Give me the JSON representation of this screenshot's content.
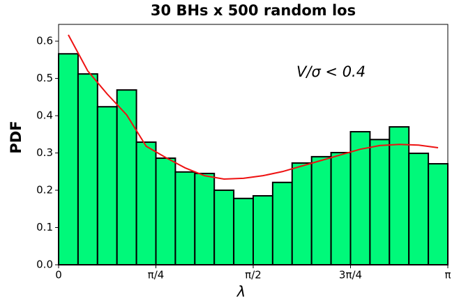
{
  "chart_data": {
    "type": "histogram",
    "title": "30 BHs x 500 random los",
    "x_label": "λ",
    "y_label": "PDF",
    "annotation": "V/σ < 0.4",
    "bins": [
      0,
      0.1571,
      0.3142,
      0.4712,
      0.6283,
      0.7854,
      0.9425,
      1.0996,
      1.2566,
      1.4137,
      1.5708,
      1.7279,
      1.885,
      2.042,
      2.1991,
      2.3562,
      2.5133,
      2.6704,
      2.8274,
      2.9845,
      3.1416
    ],
    "values": [
      0.566,
      0.512,
      0.424,
      0.469,
      0.329,
      0.286,
      0.249,
      0.245,
      0.2,
      0.178,
      0.185,
      0.221,
      0.273,
      0.29,
      0.301,
      0.357,
      0.336,
      0.37,
      0.299,
      0.271
    ],
    "color": "#00f97a",
    "edge_color": "#000000",
    "line": {
      "x": [
        0.0785,
        0.2356,
        0.3927,
        0.5498,
        0.7069,
        0.8639,
        1.021,
        1.1781,
        1.3352,
        1.4923,
        1.6493,
        1.8064,
        1.9635,
        2.1206,
        2.2777,
        2.4347,
        2.5918,
        2.7489,
        2.906,
        3.0631
      ],
      "values": [
        0.617,
        0.52,
        0.458,
        0.402,
        0.318,
        0.288,
        0.26,
        0.239,
        0.23,
        0.232,
        0.239,
        0.25,
        0.265,
        0.28,
        0.295,
        0.31,
        0.32,
        0.323,
        0.321,
        0.314
      ],
      "color": "#ee1111"
    },
    "xlim": [
      0,
      3.1416
    ],
    "xticks": [
      0,
      {
        "value": 0.7854,
        "label": "π/4"
      },
      {
        "value": 1.5708,
        "label": "π/2"
      },
      {
        "value": 2.3562,
        "label": "3π/4"
      },
      {
        "value": 3.1416,
        "label": "π"
      }
    ],
    "ylim": [
      0,
      0.645
    ],
    "yticks": [
      {
        "value": 0,
        "label": "0.0"
      },
      {
        "value": 0.1,
        "label": "0.1"
      },
      {
        "value": 0.2,
        "label": "0.2"
      },
      {
        "value": 0.3,
        "label": "0.3"
      },
      {
        "value": 0.4,
        "label": "0.4"
      },
      {
        "value": 0.5,
        "label": "0.5"
      },
      {
        "value": 0.6,
        "label": "0.6"
      }
    ]
  }
}
